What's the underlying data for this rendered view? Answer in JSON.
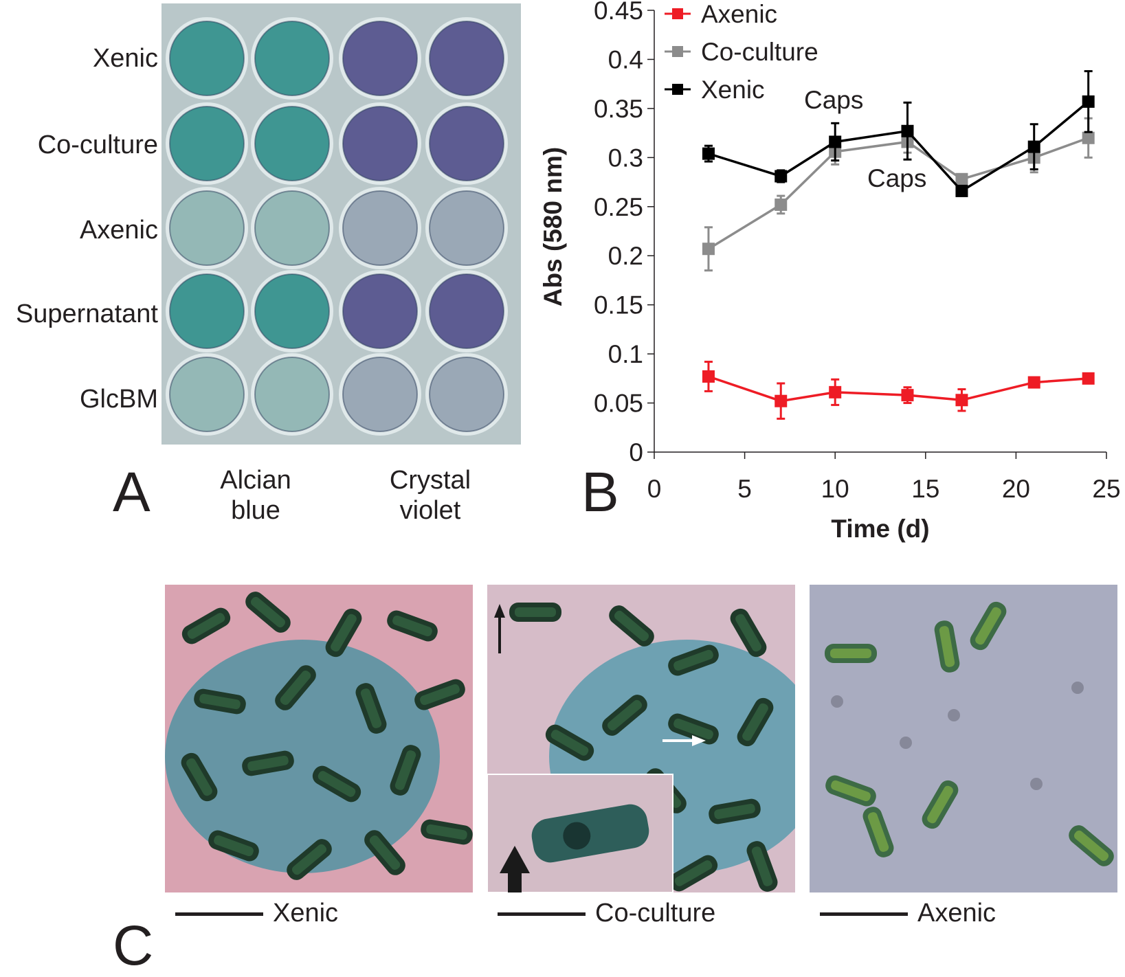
{
  "panel_a": {
    "letter": "A",
    "row_labels": [
      "Xenic",
      "Co-culture",
      "Axenic",
      "Supernatant",
      "GlcBM"
    ],
    "stain_labels": [
      {
        "line1": "Alcian",
        "line2": "blue"
      },
      {
        "line1": "Crystal",
        "line2": "violet"
      }
    ],
    "colors": {
      "plate": "#b9c7c9",
      "alcian_strong": "#3f9692",
      "alcian_light": "#94b8b6",
      "crystal_strong": "#5d5c92",
      "crystal_light": "#9aa8b6"
    }
  },
  "panel_b": {
    "letter": "B",
    "annotations": [
      "Caps",
      "Caps"
    ]
  },
  "chart_data": {
    "type": "line",
    "xlabel": "Time (d)",
    "ylabel": "Abs (580 nm)",
    "xlim": [
      0,
      25
    ],
    "ylim": [
      0,
      0.45
    ],
    "x_ticks": [
      "0",
      "5",
      "10",
      "15",
      "20",
      "25"
    ],
    "y_ticks": [
      "0",
      "0.05",
      "0.1",
      "0.15",
      "0.2",
      "0.25",
      "0.3",
      "0.35",
      "0.4",
      "0.45"
    ],
    "legend_position": "top-left",
    "grid": false,
    "x": [
      3,
      7,
      10,
      14,
      17,
      21,
      24
    ],
    "series": [
      {
        "name": "Axenic",
        "color": "#ee1c25",
        "values": [
          0.077,
          0.052,
          0.061,
          0.058,
          0.053,
          0.071,
          0.075
        ],
        "errors": [
          0.015,
          0.018,
          0.013,
          0.008,
          0.011,
          0.004,
          0.004
        ]
      },
      {
        "name": "Co-culture",
        "color": "#8c8c8c",
        "values": [
          0.207,
          0.252,
          0.306,
          0.316,
          0.278,
          0.3,
          0.32
        ],
        "errors": [
          0.022,
          0.009,
          0.013,
          0.011,
          0.004,
          0.015,
          0.02
        ]
      },
      {
        "name": "Xenic",
        "color": "#000000",
        "values": [
          0.304,
          0.281,
          0.316,
          0.327,
          0.266,
          0.311,
          0.357
        ],
        "errors": [
          0.008,
          0.006,
          0.019,
          0.029,
          0.004,
          0.023,
          0.031
        ]
      }
    ]
  },
  "panel_c": {
    "letter": "C",
    "images": [
      {
        "label": "Xenic",
        "background": "#d9a3b1",
        "stain": "#3f90a0"
      },
      {
        "label": "Co-culture",
        "background": "#d6bcc8",
        "stain": "#4b98ab"
      },
      {
        "label": "Axenic",
        "background": "#a9acc0",
        "stain": "#9ea3b8"
      }
    ]
  }
}
